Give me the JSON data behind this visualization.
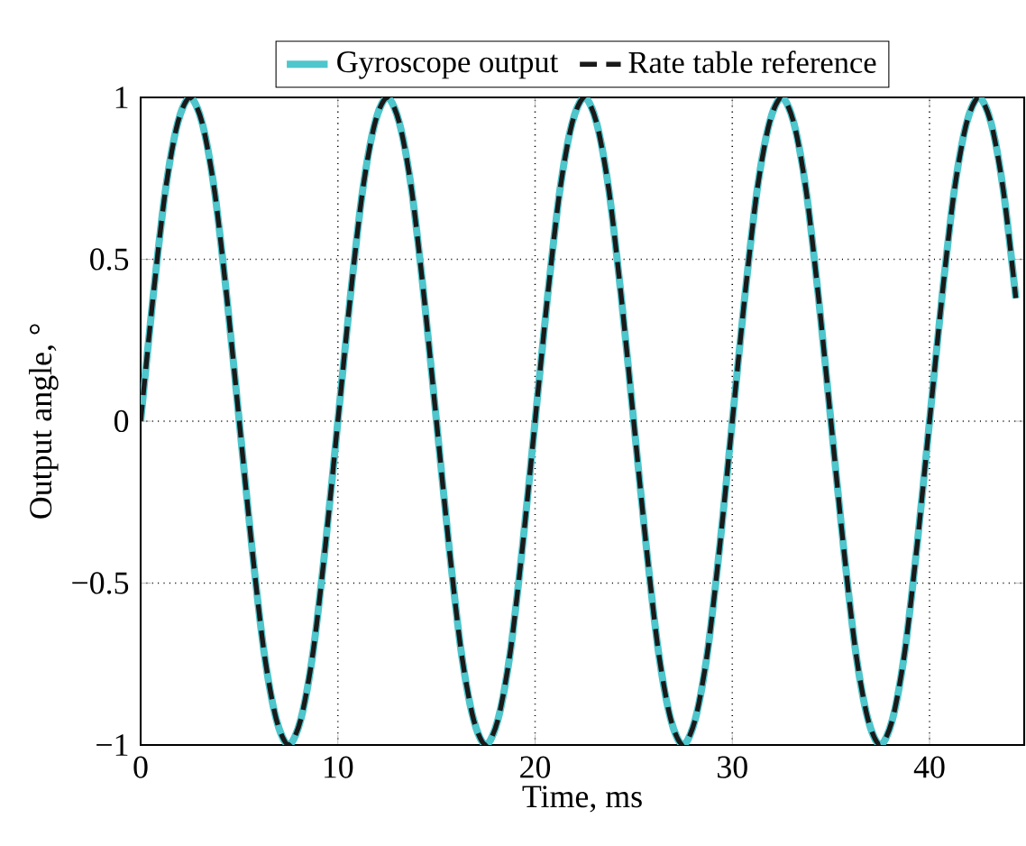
{
  "chart_data": {
    "type": "line",
    "xlabel": "Time, ms",
    "ylabel": "Output angle, °",
    "x": [
      0,
      0.625,
      1.25,
      1.875,
      2.5,
      3.125,
      3.75,
      4.375,
      5,
      5.625,
      6.25,
      6.875,
      7.5,
      8.125,
      8.75,
      9.375,
      10,
      10.625,
      11.25,
      11.875,
      12.5,
      13.125,
      13.75,
      14.375,
      15,
      15.625,
      16.25,
      16.875,
      17.5,
      18.125,
      18.75,
      19.375,
      20,
      20.625,
      21.25,
      21.875,
      22.5,
      23.125,
      23.75,
      24.375,
      25,
      25.625,
      26.25,
      26.875,
      27.5,
      28.125,
      28.75,
      29.375,
      30,
      30.625,
      31.25,
      31.875,
      32.5,
      33.125,
      33.75,
      34.375,
      35,
      35.625,
      36.25,
      36.875,
      37.5,
      38.125,
      38.75,
      39.375,
      40,
      40.625,
      41.25,
      41.875,
      42.5,
      43.125,
      43.75,
      44.375
    ],
    "series": [
      {
        "name": "Gyroscope output",
        "color": "#4ec6cc",
        "line_style": "solid",
        "values": [
          0,
          0.38,
          0.71,
          0.92,
          1,
          0.92,
          0.71,
          0.38,
          0,
          -0.38,
          -0.71,
          -0.92,
          -1,
          -0.92,
          -0.71,
          -0.38,
          0,
          0.38,
          0.71,
          0.92,
          1,
          0.92,
          0.71,
          0.38,
          0,
          -0.38,
          -0.71,
          -0.92,
          -1,
          -0.92,
          -0.71,
          -0.38,
          0,
          0.38,
          0.71,
          0.92,
          1,
          0.92,
          0.71,
          0.38,
          0,
          -0.38,
          -0.71,
          -0.92,
          -1,
          -0.92,
          -0.71,
          -0.38,
          0,
          0.38,
          0.71,
          0.92,
          1,
          0.92,
          0.71,
          0.38,
          0,
          -0.38,
          -0.71,
          -0.92,
          -1,
          -0.92,
          -0.71,
          -0.38,
          0,
          0.38,
          0.71,
          0.92,
          1,
          0.92,
          0.71,
          0.38
        ]
      },
      {
        "name": "Rate table reference",
        "color": "#1a1a1a",
        "line_style": "dashed",
        "values": [
          0,
          0.38,
          0.71,
          0.92,
          1,
          0.92,
          0.71,
          0.38,
          0,
          -0.38,
          -0.71,
          -0.92,
          -1,
          -0.92,
          -0.71,
          -0.38,
          0,
          0.38,
          0.71,
          0.92,
          1,
          0.92,
          0.71,
          0.38,
          0,
          -0.38,
          -0.71,
          -0.92,
          -1,
          -0.92,
          -0.71,
          -0.38,
          0,
          0.38,
          0.71,
          0.92,
          1,
          0.92,
          0.71,
          0.38,
          0,
          -0.38,
          -0.71,
          -0.92,
          -1,
          -0.92,
          -0.71,
          -0.38,
          0,
          0.38,
          0.71,
          0.92,
          1,
          0.92,
          0.71,
          0.38,
          0,
          -0.38,
          -0.71,
          -0.92,
          -1,
          -0.92,
          -0.71,
          -0.38,
          0,
          0.38,
          0.71,
          0.92,
          1,
          0.92,
          0.71,
          0.38
        ]
      }
    ],
    "xlim": [
      0,
      44.8
    ],
    "xticks": [
      0,
      10,
      20,
      30,
      40
    ],
    "ylim": [
      -1,
      1
    ],
    "yticks": [
      {
        "value": -1,
        "label": "−1"
      },
      {
        "value": -0.5,
        "label": "−0.5"
      },
      0,
      0.5,
      1
    ],
    "grid": true,
    "legend": "top"
  }
}
